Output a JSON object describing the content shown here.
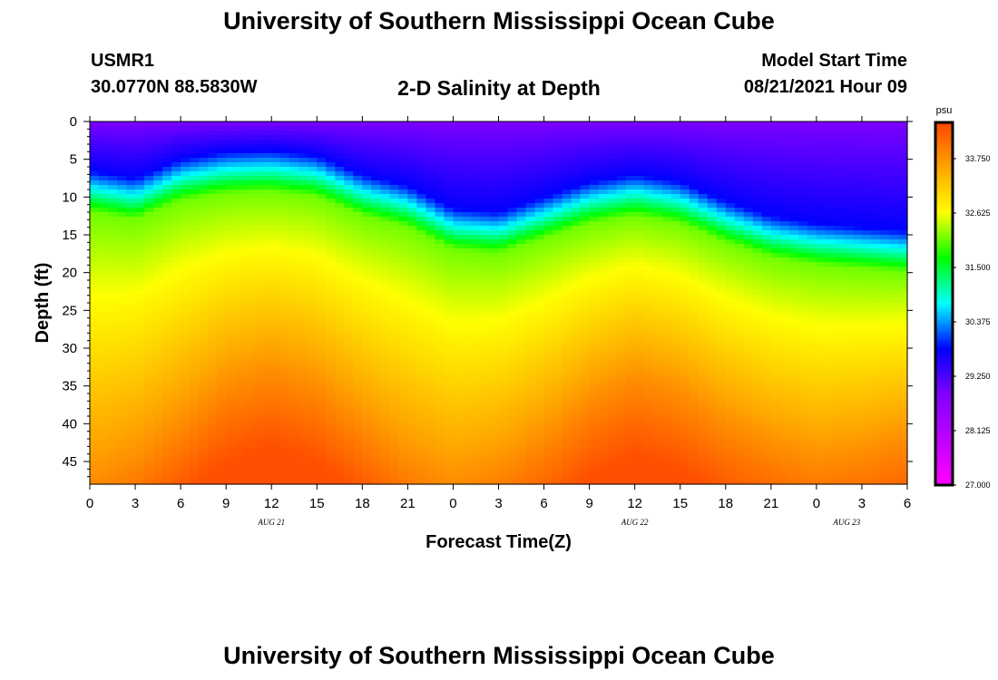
{
  "header": {
    "title": "University of Southern Mississippi Ocean Cube",
    "station_id": "USMR1",
    "station_coords": "30.0770N  88.5830W",
    "plot_title": "2-D Salinity at Depth",
    "model_start_label": "Model Start Time",
    "model_start_value": "08/21/2021 Hour 09"
  },
  "footer": {
    "title": "University of Southern Mississippi Ocean Cube"
  },
  "chart_data": {
    "type": "heatmap",
    "title": "2-D Salinity at Depth",
    "xlabel": "Forecast Time(Z)",
    "ylabel": "Depth (ft)",
    "x_range_hours": [
      0,
      54
    ],
    "y_range_ft": [
      0,
      48
    ],
    "x_tick_labels": [
      "0",
      "3",
      "6",
      "9",
      "12",
      "15",
      "18",
      "21",
      "0",
      "3",
      "6",
      "9",
      "12",
      "15",
      "18",
      "21",
      "0",
      "3",
      "6"
    ],
    "y_tick_labels": [
      "0",
      "5",
      "10",
      "15",
      "20",
      "25",
      "30",
      "35",
      "40",
      "45"
    ],
    "y_tick_values": [
      0,
      5,
      10,
      15,
      20,
      25,
      30,
      35,
      40,
      45
    ],
    "date_labels": [
      {
        "label": "AUG  21",
        "hour": 12
      },
      {
        "label": "AUG  22",
        "hour": 36
      },
      {
        "label": "AUG  23",
        "hour": 50
      }
    ],
    "colorbar": {
      "unit": "psu",
      "min": 27.0,
      "max": 34.5,
      "tick_values": [
        27.0,
        28.125,
        29.25,
        30.375,
        31.5,
        32.625,
        33.75
      ],
      "tick_labels": [
        "27.000",
        "28.125",
        "29.250",
        "30.375",
        "31.500",
        "32.625",
        "33.750"
      ],
      "colors": [
        "#ff00ff",
        "#c000ff",
        "#8000ff",
        "#0000ff",
        "#00ffff",
        "#00ff00",
        "#ffff00",
        "#ffa500",
        "#ff4500"
      ]
    },
    "halocline_depth_ft": {
      "hours": [
        0,
        3,
        6,
        9,
        12,
        15,
        18,
        21,
        24,
        27,
        30,
        33,
        36,
        39,
        42,
        45,
        48,
        51,
        54
      ],
      "values": [
        9.5,
        10.5,
        8,
        7,
        6.8,
        7.5,
        10,
        11.5,
        14.5,
        15,
        13,
        11,
        10,
        11,
        13.5,
        15.5,
        16.5,
        17,
        17.5
      ]
    },
    "isohaline_34_depth_ft": {
      "hours": [
        0,
        3,
        6,
        9,
        12,
        15,
        18,
        21,
        24,
        27,
        30,
        33,
        36,
        39,
        42,
        45,
        48,
        51,
        54
      ],
      "values": [
        48,
        45,
        40,
        35,
        33,
        35,
        40,
        45,
        48,
        46,
        42,
        37,
        34,
        36,
        40,
        43,
        45,
        44,
        42
      ]
    },
    "surface_salinity_psu": 28.9,
    "bottom_salinity_psu": 34.1
  }
}
